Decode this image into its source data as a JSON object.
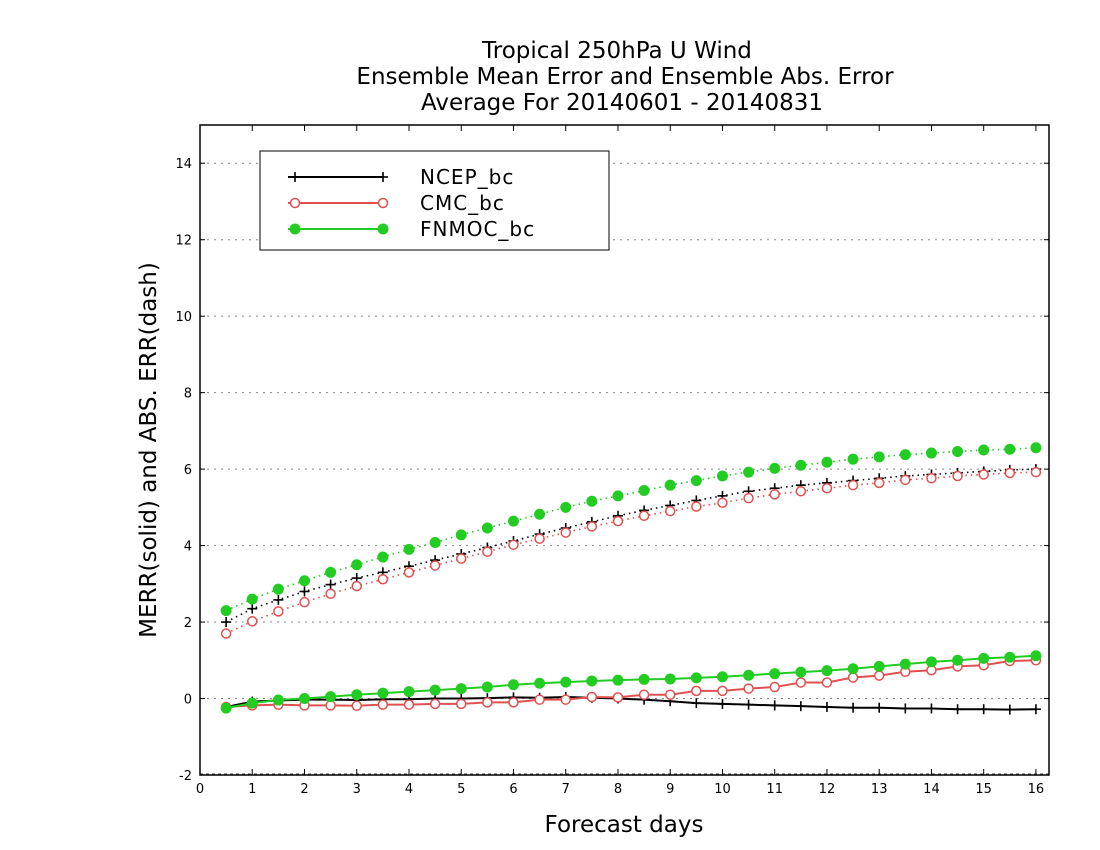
{
  "chart_data": {
    "type": "line",
    "title": [
      "Tropical 250hPa U Wind",
      "Ensemble Mean Error and Ensemble Abs. Error",
      "Average For 20140601 - 20140831"
    ],
    "xlabel": "Forecast days",
    "ylabel": "MERR(solid) and ABS. ERR(dash)",
    "xlim": [
      0,
      16.25
    ],
    "ylim": [
      -2,
      15
    ],
    "xticks": [
      "0",
      "1",
      "2",
      "3",
      "4",
      "5",
      "6",
      "7",
      "8",
      "9",
      "10",
      "11",
      "12",
      "13",
      "14",
      "15",
      "16"
    ],
    "yticks": [
      "-2",
      "0",
      "2",
      "4",
      "6",
      "8",
      "10",
      "12",
      "14"
    ],
    "grid": "horizontal dotted",
    "legend_position": "top-left",
    "x": [
      0.5,
      1,
      1.5,
      2,
      2.5,
      3,
      3.5,
      4,
      4.5,
      5,
      5.5,
      6,
      6.5,
      7,
      7.5,
      8,
      8.5,
      9,
      9.5,
      10,
      10.5,
      11,
      11.5,
      12,
      12.5,
      13,
      13.5,
      14,
      14.5,
      15,
      15.5,
      16
    ],
    "series": [
      {
        "name": "NCEP_bc",
        "color": "#000000",
        "marker": "plus",
        "merr": [
          -0.22,
          -0.08,
          -0.05,
          -0.03,
          -0.03,
          -0.04,
          -0.02,
          -0.02,
          0.0,
          0.0,
          0.01,
          0.03,
          0.02,
          0.04,
          0.02,
          0.0,
          -0.03,
          -0.07,
          -0.12,
          -0.14,
          -0.16,
          -0.18,
          -0.2,
          -0.22,
          -0.24,
          -0.24,
          -0.26,
          -0.26,
          -0.28,
          -0.28,
          -0.29,
          -0.28
        ],
        "abs_err": [
          2.0,
          2.35,
          2.58,
          2.8,
          2.98,
          3.15,
          3.3,
          3.46,
          3.62,
          3.78,
          3.95,
          4.12,
          4.3,
          4.46,
          4.62,
          4.78,
          4.92,
          5.05,
          5.18,
          5.3,
          5.42,
          5.5,
          5.58,
          5.64,
          5.7,
          5.76,
          5.82,
          5.86,
          5.9,
          5.94,
          5.98,
          6.0
        ]
      },
      {
        "name": "CMC_bc",
        "color": "#e05050",
        "marker": "open-circle",
        "merr": [
          -0.22,
          -0.18,
          -0.16,
          -0.18,
          -0.18,
          -0.19,
          -0.16,
          -0.16,
          -0.14,
          -0.14,
          -0.1,
          -0.1,
          -0.03,
          -0.03,
          0.04,
          0.03,
          0.1,
          0.1,
          0.2,
          0.2,
          0.26,
          0.3,
          0.42,
          0.42,
          0.55,
          0.6,
          0.7,
          0.74,
          0.84,
          0.87,
          0.98,
          1.0
        ],
        "abs_err": [
          1.7,
          2.02,
          2.28,
          2.52,
          2.74,
          2.94,
          3.12,
          3.3,
          3.48,
          3.66,
          3.84,
          4.02,
          4.18,
          4.34,
          4.5,
          4.64,
          4.78,
          4.9,
          5.02,
          5.12,
          5.24,
          5.34,
          5.42,
          5.5,
          5.58,
          5.64,
          5.72,
          5.76,
          5.82,
          5.86,
          5.9,
          5.92
        ]
      },
      {
        "name": "FNMOC_bc",
        "color": "#22cc22",
        "marker": "filled-circle",
        "merr": [
          -0.25,
          -0.12,
          -0.04,
          0.0,
          0.05,
          0.1,
          0.14,
          0.18,
          0.22,
          0.26,
          0.3,
          0.36,
          0.4,
          0.43,
          0.46,
          0.48,
          0.5,
          0.51,
          0.54,
          0.57,
          0.61,
          0.65,
          0.69,
          0.73,
          0.78,
          0.84,
          0.9,
          0.96,
          1.0,
          1.05,
          1.08,
          1.12
        ],
        "abs_err": [
          2.3,
          2.6,
          2.86,
          3.08,
          3.3,
          3.5,
          3.7,
          3.9,
          4.08,
          4.28,
          4.46,
          4.64,
          4.82,
          5.0,
          5.16,
          5.3,
          5.44,
          5.58,
          5.7,
          5.82,
          5.92,
          6.02,
          6.1,
          6.18,
          6.26,
          6.32,
          6.38,
          6.42,
          6.46,
          6.5,
          6.52,
          6.56
        ]
      }
    ]
  }
}
